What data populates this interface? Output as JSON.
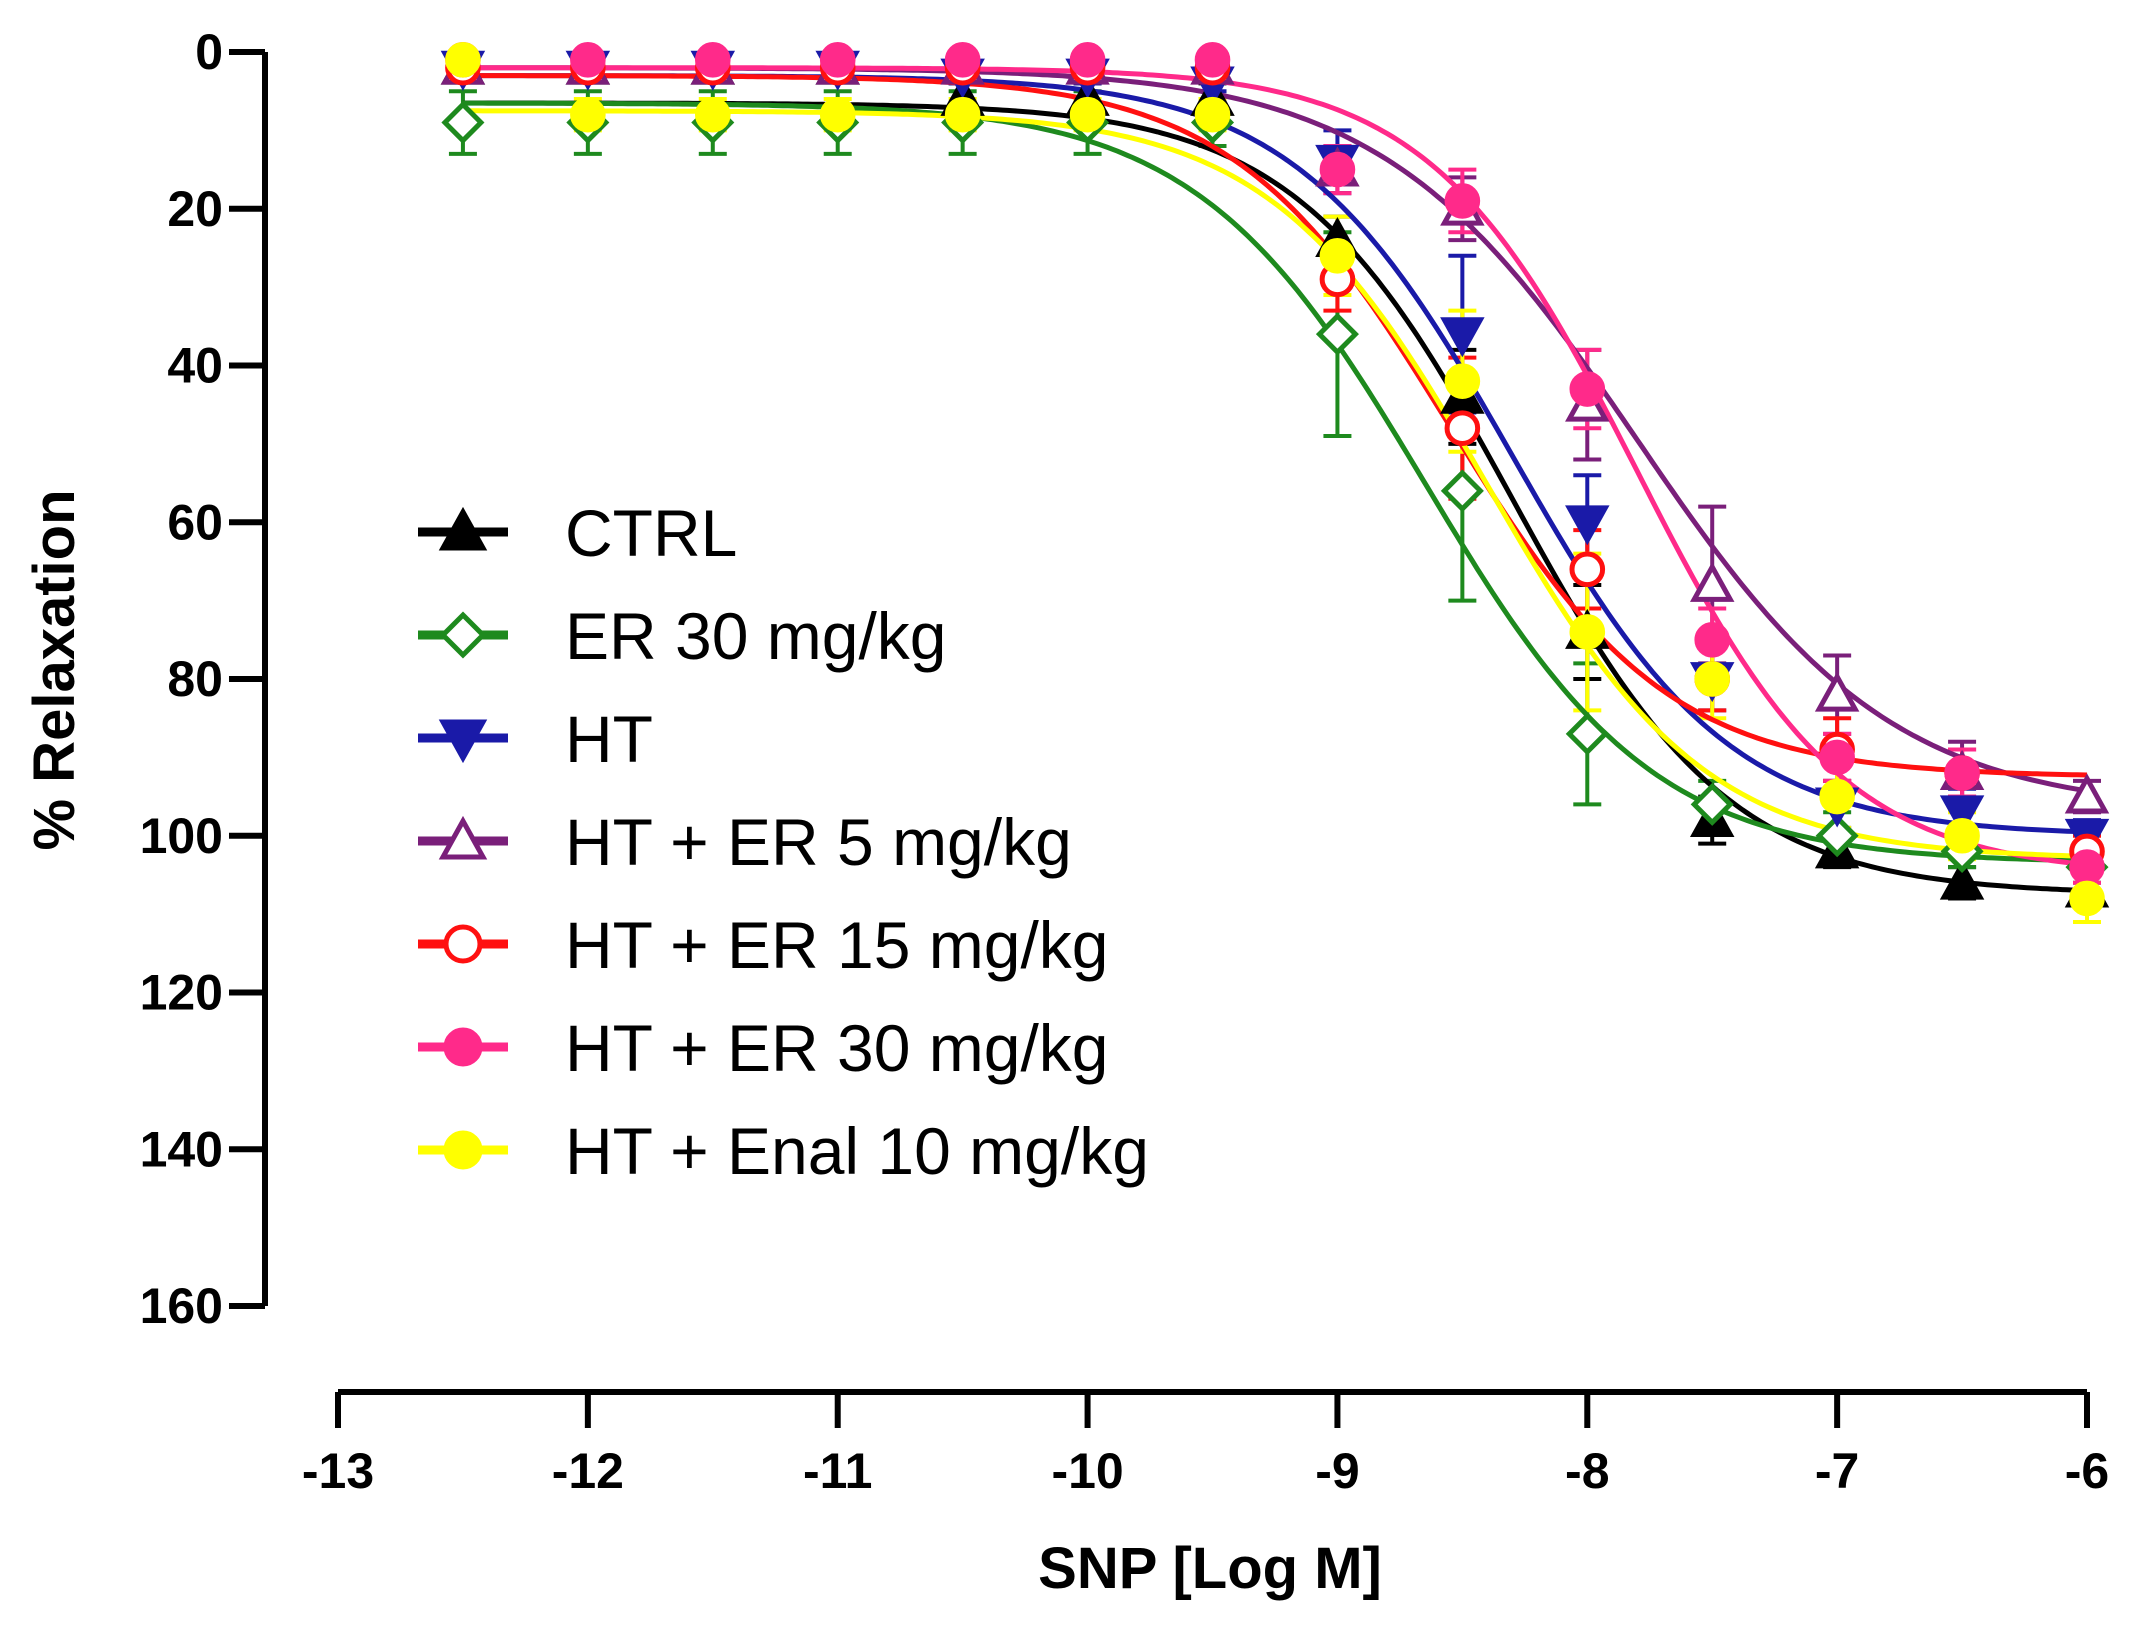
{
  "chart_data": {
    "type": "line",
    "xlabel": "SNP [Log M]",
    "ylabel": "% Relaxation",
    "xlim": [
      -13,
      -6
    ],
    "ylim": [
      0,
      160
    ],
    "y_inverted": true,
    "xticks": [
      -13,
      -12,
      -11,
      -10,
      -9,
      -8,
      -7,
      -6
    ],
    "yticks": [
      0,
      20,
      40,
      60,
      80,
      100,
      120,
      140,
      160
    ],
    "grid": false,
    "legend_position": "center-left",
    "x": [
      -12.5,
      -12,
      -11.5,
      -11,
      -10.5,
      -10,
      -9.5,
      -9,
      -8.5,
      -8,
      -7.5,
      -7,
      -6.5,
      -6
    ],
    "series": [
      {
        "name": "CTRL",
        "color": "#000000",
        "marker": "triangle-up",
        "values": [
          2,
          2,
          2,
          2,
          6,
          6,
          6,
          24,
          44,
          74,
          98,
          102,
          106,
          107
        ],
        "errors": [
          1,
          1,
          1,
          1,
          2,
          2,
          2,
          3,
          6,
          6,
          3,
          2,
          2,
          2
        ],
        "fit": {
          "bottom": 6.5,
          "top": 107.5,
          "logEC50": -8.3,
          "hill": 1.0
        }
      },
      {
        "name": "ER 30 mg/kg",
        "color": "#1e8a1e",
        "marker": "diamond",
        "values": [
          9,
          9,
          9,
          9,
          9,
          9,
          9,
          36,
          56,
          87,
          96,
          100,
          102,
          104
        ],
        "errors": [
          4,
          4,
          4,
          4,
          4,
          4,
          3,
          13,
          14,
          9,
          3,
          3,
          2,
          2
        ],
        "fit": {
          "bottom": 6.5,
          "top": 103.5,
          "logEC50": -8.65,
          "hill": 0.95
        }
      },
      {
        "name": "HT",
        "color": "#1a1aa8",
        "marker": "triangle-down",
        "values": [
          2,
          2,
          2,
          2,
          3,
          3,
          4,
          14,
          36,
          60,
          80,
          96,
          97,
          100
        ],
        "errors": [
          1,
          1,
          1,
          1,
          1,
          1,
          1,
          4,
          10,
          6,
          4,
          3,
          3,
          2
        ],
        "fit": {
          "bottom": 3,
          "top": 100,
          "logEC50": -8.3,
          "hill": 1.0
        }
      },
      {
        "name": "HT + ER 5 mg/kg",
        "color": "#7a1f7a",
        "marker": "triangle-up-open",
        "values": [
          2,
          2,
          2,
          2,
          2,
          2,
          2,
          15,
          20,
          45,
          68,
          82,
          92,
          95
        ],
        "errors": [
          1,
          1,
          1,
          1,
          1,
          1,
          1,
          3,
          4,
          7,
          10,
          5,
          4,
          2
        ],
        "fit": {
          "bottom": 2,
          "top": 97,
          "logEC50": -7.8,
          "hill": 0.85
        }
      },
      {
        "name": "HT + ER 15 mg/kg",
        "color": "#ff1010",
        "marker": "circle-open",
        "values": [
          2,
          2,
          2,
          2,
          2,
          2,
          2,
          29,
          48,
          66,
          80,
          89,
          92,
          102
        ],
        "errors": [
          1,
          1,
          1,
          1,
          1,
          1,
          1,
          4,
          9,
          5,
          4,
          4,
          3,
          2
        ],
        "fit": {
          "bottom": 3,
          "top": 92.5,
          "logEC50": -8.55,
          "hill": 1.0
        }
      },
      {
        "name": "HT + ER 30 mg/kg",
        "color": "#ff2a8a",
        "marker": "circle",
        "values": [
          1,
          1,
          1,
          1,
          1,
          1,
          1,
          15,
          19,
          43,
          75,
          90,
          92,
          104
        ],
        "errors": [
          1,
          1,
          1,
          1,
          1,
          1,
          1,
          3,
          4,
          5,
          4,
          3,
          3,
          2
        ],
        "fit": {
          "bottom": 2,
          "top": 105,
          "logEC50": -7.8,
          "hill": 1.05
        }
      },
      {
        "name": "HT + Enal 10 mg/kg",
        "color": "#ffff00",
        "marker": "circle",
        "values": [
          1,
          8,
          8,
          8,
          8,
          8,
          8,
          26,
          42,
          74,
          80,
          95,
          100,
          108
        ],
        "errors": [
          1,
          2,
          2,
          2,
          2,
          2,
          2,
          5,
          9,
          10,
          5,
          4,
          3,
          3
        ],
        "fit": {
          "bottom": 7.5,
          "top": 103,
          "logEC50": -8.4,
          "hill": 1.0
        }
      }
    ]
  }
}
